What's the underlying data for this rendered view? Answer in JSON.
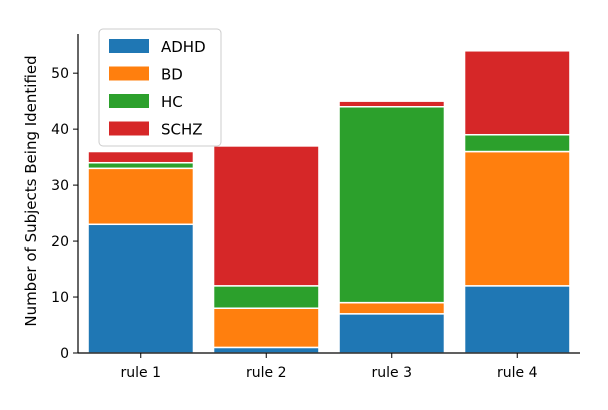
{
  "chart_data": {
    "type": "bar",
    "stacked": true,
    "categories": [
      "rule 1",
      "rule 2",
      "rule 3",
      "rule 4"
    ],
    "series": [
      {
        "name": "ADHD",
        "color": "#1f77b4",
        "values": [
          23,
          1,
          7,
          12
        ]
      },
      {
        "name": "BD",
        "color": "#ff7f0e",
        "values": [
          10,
          7,
          2,
          24
        ]
      },
      {
        "name": "HC",
        "color": "#2ca02c",
        "values": [
          1,
          4,
          35,
          3
        ]
      },
      {
        "name": "SCHZ",
        "color": "#d62728",
        "values": [
          2,
          25,
          1,
          15
        ]
      }
    ],
    "ylabel": "Number of Subjects Being Identified",
    "xlabel": "",
    "ylim": [
      0,
      57
    ],
    "yticks": [
      0,
      10,
      20,
      30,
      40,
      50
    ],
    "legend": "top-left",
    "grid": false
  }
}
